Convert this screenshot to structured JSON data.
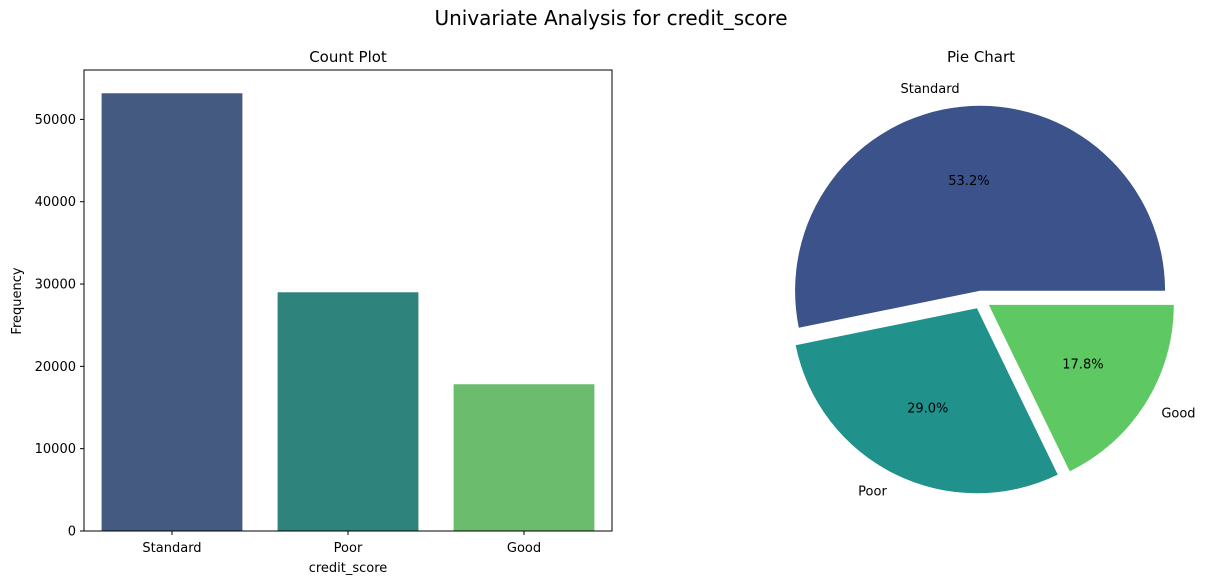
{
  "figure": {
    "title": "Univariate Analysis for credit_score"
  },
  "chart_data": [
    {
      "type": "bar",
      "title": "Count Plot",
      "xlabel": "credit_score",
      "ylabel": "Frequency",
      "categories": [
        "Standard",
        "Poor",
        "Good"
      ],
      "values": [
        53174,
        28998,
        17828
      ],
      "ylim": [
        0,
        56000
      ],
      "yticks": [
        0,
        10000,
        20000,
        30000,
        40000,
        50000
      ],
      "colors": [
        "#455a80",
        "#2e837c",
        "#6cbc6d"
      ],
      "grid": false
    },
    {
      "type": "pie",
      "title": "Pie Chart",
      "categories": [
        "Standard",
        "Poor",
        "Good"
      ],
      "values": [
        53.2,
        29.0,
        17.8
      ],
      "labels_pct": [
        "53.2%",
        "29.0%",
        "17.8%"
      ],
      "explode": [
        0.05,
        0.05,
        0.05
      ],
      "colors": [
        "#3b528b",
        "#21918c",
        "#5ec962"
      ]
    }
  ]
}
